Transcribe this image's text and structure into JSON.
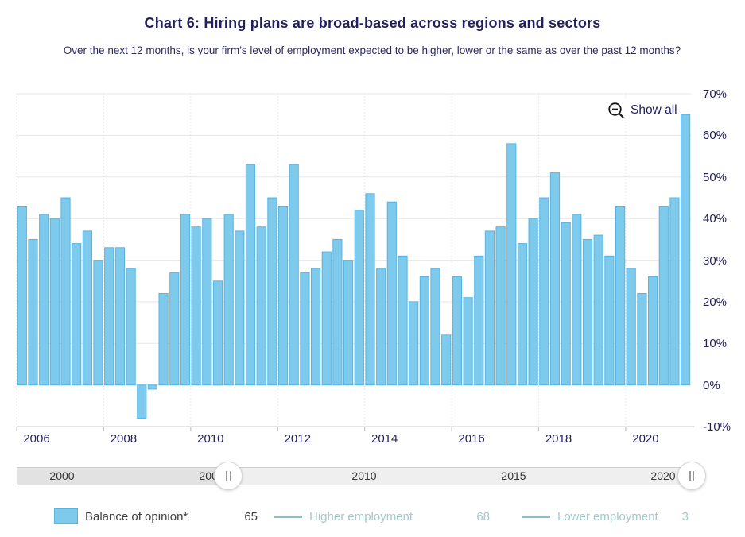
{
  "header": {
    "title": "Chart 6: Hiring plans are broad-based across regions and sectors",
    "subtitle": "Over the next 12 months, is your firm’s level of employment expected to be higher, lower or the same as over the past 12 months?"
  },
  "toolbar": {
    "show_all_label": "Show all"
  },
  "chart_data": {
    "type": "bar",
    "title": "Chart 6: Hiring plans are broad-based across regions and sectors",
    "subtitle": "Over the next 12 months, is your firm’s level of employment expected to be higher, lower or the same as over the past 12 months?",
    "ylabel": "Balance of opinion (%)",
    "ylim": [
      -10,
      70
    ],
    "grid": true,
    "frequency": "quarterly",
    "periods": [
      "2006 Q1",
      "2006 Q2",
      "2006 Q3",
      "2006 Q4",
      "2007 Q1",
      "2007 Q2",
      "2007 Q3",
      "2007 Q4",
      "2008 Q1",
      "2008 Q2",
      "2008 Q3",
      "2008 Q4",
      "2009 Q1",
      "2009 Q2",
      "2009 Q3",
      "2009 Q4",
      "2010 Q1",
      "2010 Q2",
      "2010 Q3",
      "2010 Q4",
      "2011 Q1",
      "2011 Q2",
      "2011 Q3",
      "2011 Q4",
      "2012 Q1",
      "2012 Q2",
      "2012 Q3",
      "2012 Q4",
      "2013 Q1",
      "2013 Q2",
      "2013 Q3",
      "2013 Q4",
      "2014 Q1",
      "2014 Q2",
      "2014 Q3",
      "2014 Q4",
      "2015 Q1",
      "2015 Q2",
      "2015 Q3",
      "2015 Q4",
      "2016 Q1",
      "2016 Q2",
      "2016 Q3",
      "2016 Q4",
      "2017 Q1",
      "2017 Q2",
      "2017 Q3",
      "2017 Q4",
      "2018 Q1",
      "2018 Q2",
      "2018 Q3",
      "2018 Q4",
      "2019 Q1",
      "2019 Q2",
      "2019 Q3",
      "2019 Q4",
      "2020 Q1",
      "2020 Q2",
      "2020 Q3",
      "2020 Q4",
      "2021 Q1",
      "2021 Q2"
    ],
    "values": [
      43,
      35,
      41,
      40,
      45,
      34,
      37,
      30,
      33,
      33,
      28,
      -8,
      -1,
      22,
      27,
      41,
      38,
      40,
      25,
      41,
      37,
      53,
      38,
      45,
      43,
      53,
      27,
      28,
      32,
      35,
      30,
      42,
      46,
      28,
      44,
      31,
      20,
      26,
      28,
      12,
      26,
      21,
      31,
      37,
      38,
      58,
      34,
      40,
      45,
      51,
      39,
      41,
      35,
      36,
      31,
      43,
      28,
      22,
      26,
      43,
      45,
      65
    ],
    "series_name": "Balance of opinion*",
    "y_ticks": [
      "70%",
      "60%",
      "50%",
      "40%",
      "30%",
      "20%",
      "10%",
      "0%",
      "-10%"
    ],
    "x_ticks": [
      "2006",
      "2008",
      "2010",
      "2012",
      "2014",
      "2016",
      "2018",
      "2020"
    ],
    "bar_color": "#7ecaec",
    "bar_border_color": "#58b5e2",
    "legend_position": "bottom"
  },
  "navigator": {
    "labels": [
      "2000",
      "2005",
      "2010",
      "2015",
      "2020"
    ]
  },
  "legend": {
    "items": [
      {
        "label": "Balance of opinion*",
        "value": "65",
        "swatch": "rect",
        "color": "#7ecaec",
        "muted": false
      },
      {
        "label": "Higher employment",
        "value": "68",
        "swatch": "line",
        "color": "#8dc1c1",
        "muted": true
      },
      {
        "label": "Lower employment",
        "value": "3",
        "swatch": "line",
        "color": "#8dc1c1",
        "muted": true
      }
    ]
  },
  "colors": {
    "title_navy": "#221f5c",
    "bar_fill": "#7ecaec",
    "bar_border": "#58b5e2",
    "teal_line": "#8dc1c1",
    "muted_text": "#a5c8c8",
    "gridline": "#e7e7e7"
  }
}
